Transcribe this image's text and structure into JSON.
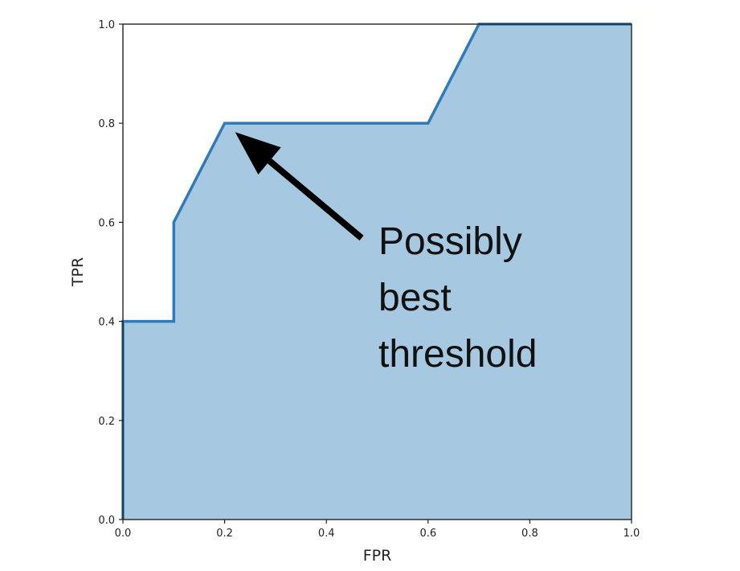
{
  "chart_data": {
    "type": "area",
    "title": "",
    "xlabel": "FPR",
    "ylabel": "TPR",
    "xlim": [
      0.0,
      1.0
    ],
    "ylim": [
      0.0,
      1.0
    ],
    "x_ticks": [
      "0.0",
      "0.2",
      "0.4",
      "0.6",
      "0.8",
      "1.0"
    ],
    "y_ticks": [
      "0.0",
      "0.2",
      "0.4",
      "0.6",
      "0.8",
      "1.0"
    ],
    "grid": false,
    "series": [
      {
        "x": [
          0.0,
          0.0,
          0.1,
          0.1,
          0.2,
          0.6,
          0.7,
          1.0
        ],
        "y": [
          0.0,
          0.4,
          0.4,
          0.6,
          0.8,
          0.8,
          1.0,
          1.0
        ]
      }
    ],
    "annotation": {
      "lines": [
        "Possibly",
        "best",
        "threshold"
      ],
      "points_to": [
        0.2,
        0.8
      ]
    },
    "colors": {
      "line": "#2f7ab9",
      "fill": "#a6c8e0",
      "arrow": "#000000",
      "axes": "#222222"
    }
  }
}
